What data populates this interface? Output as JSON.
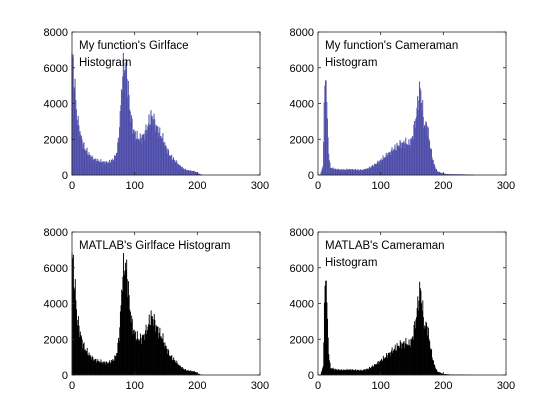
{
  "chart_data": [
    {
      "type": "bar",
      "variant": "outline",
      "title_lines": [
        "My function's Girlface",
        "Histogram"
      ],
      "xlim": [
        0,
        300
      ],
      "ylim": [
        0,
        8000
      ],
      "xticks": [
        0,
        100,
        200,
        300
      ],
      "yticks": [
        0,
        2000,
        4000,
        6000,
        8000
      ],
      "grid": false,
      "color": "#4a4aa8",
      "series": [
        {
          "x": [
            0,
            4,
            8,
            12,
            16,
            20,
            24,
            28,
            32,
            36,
            40,
            44,
            48,
            52,
            56,
            60,
            64,
            68,
            72,
            76,
            80,
            84,
            88,
            92,
            96,
            100,
            104,
            108,
            112,
            116,
            120,
            124,
            128,
            132,
            136,
            140,
            144,
            148,
            152,
            156,
            160,
            164,
            168,
            172,
            176,
            180,
            184,
            188,
            192,
            196,
            200,
            204,
            208
          ],
          "values": [
            6800,
            5200,
            3200,
            2500,
            1900,
            1500,
            1300,
            1100,
            950,
            850,
            800,
            760,
            720,
            700,
            680,
            720,
            800,
            950,
            1300,
            2600,
            5300,
            6300,
            5600,
            3800,
            2800,
            2300,
            2100,
            2000,
            2100,
            2300,
            2600,
            3100,
            3300,
            2900,
            2600,
            2300,
            2100,
            1700,
            1400,
            1100,
            950,
            800,
            650,
            500,
            400,
            300,
            250,
            230,
            210,
            190,
            100,
            40,
            0
          ]
        }
      ]
    },
    {
      "type": "bar",
      "variant": "outline",
      "title_lines": [
        "My function's Cameraman",
        "Histogram"
      ],
      "xlim": [
        0,
        300
      ],
      "ylim": [
        0,
        8000
      ],
      "xticks": [
        0,
        100,
        200,
        300
      ],
      "yticks": [
        0,
        2000,
        4000,
        6000,
        8000
      ],
      "grid": false,
      "color": "#4a4aa8",
      "series": [
        {
          "x": [
            4,
            8,
            10,
            12,
            14,
            16,
            18,
            20,
            24,
            30,
            40,
            50,
            60,
            70,
            80,
            90,
            100,
            110,
            120,
            130,
            140,
            145,
            150,
            155,
            158,
            160,
            163,
            165,
            168,
            170,
            173,
            175,
            180,
            185,
            190,
            200,
            210,
            220,
            230,
            240,
            250
          ],
          "values": [
            0,
            500,
            3500,
            6200,
            4000,
            2000,
            800,
            400,
            350,
            300,
            280,
            300,
            280,
            260,
            350,
            550,
            800,
            1100,
            1400,
            1700,
            1800,
            1700,
            2000,
            2900,
            3600,
            4200,
            4900,
            4300,
            3200,
            2700,
            2800,
            2600,
            1400,
            600,
            200,
            60,
            30,
            25,
            20,
            15,
            0
          ]
        }
      ]
    },
    {
      "type": "bar",
      "variant": "filled",
      "title_lines": [
        "MATLAB's Girlface Histogram"
      ],
      "xlim": [
        0,
        300
      ],
      "ylim": [
        0,
        8000
      ],
      "xticks": [
        0,
        100,
        200,
        300
      ],
      "yticks": [
        0,
        2000,
        4000,
        6000,
        8000
      ],
      "grid": false,
      "color": "#000000",
      "series": [
        {
          "x": [
            0,
            4,
            8,
            12,
            16,
            20,
            24,
            28,
            32,
            36,
            40,
            44,
            48,
            52,
            56,
            60,
            64,
            68,
            72,
            76,
            80,
            84,
            88,
            92,
            96,
            100,
            104,
            108,
            112,
            116,
            120,
            124,
            128,
            132,
            136,
            140,
            144,
            148,
            152,
            156,
            160,
            164,
            168,
            172,
            176,
            180,
            184,
            188,
            192,
            196,
            200,
            204,
            208
          ],
          "values": [
            6800,
            5200,
            3200,
            2500,
            1900,
            1500,
            1300,
            1100,
            950,
            850,
            800,
            760,
            720,
            700,
            680,
            720,
            800,
            950,
            1300,
            2600,
            5300,
            6300,
            5600,
            3800,
            2800,
            2300,
            2100,
            2000,
            2100,
            2300,
            2600,
            3100,
            3300,
            2900,
            2600,
            2300,
            2100,
            1700,
            1400,
            1100,
            950,
            800,
            650,
            500,
            400,
            300,
            250,
            230,
            210,
            190,
            100,
            40,
            0
          ]
        }
      ]
    },
    {
      "type": "bar",
      "variant": "filled",
      "title_lines": [
        "MATLAB's Cameraman",
        "Histogram"
      ],
      "xlim": [
        0,
        300
      ],
      "ylim": [
        0,
        8000
      ],
      "xticks": [
        0,
        100,
        200,
        300
      ],
      "yticks": [
        0,
        2000,
        4000,
        6000,
        8000
      ],
      "grid": false,
      "color": "#000000",
      "series": [
        {
          "x": [
            4,
            8,
            10,
            12,
            14,
            16,
            18,
            20,
            24,
            30,
            40,
            50,
            60,
            70,
            80,
            90,
            100,
            110,
            120,
            130,
            140,
            145,
            150,
            155,
            158,
            160,
            163,
            165,
            168,
            170,
            173,
            175,
            180,
            185,
            190,
            200,
            210,
            220,
            230,
            240,
            250
          ],
          "values": [
            0,
            500,
            3500,
            6200,
            4000,
            2000,
            800,
            400,
            350,
            300,
            280,
            300,
            280,
            260,
            350,
            550,
            800,
            1100,
            1400,
            1700,
            1800,
            1700,
            2000,
            2900,
            3600,
            4200,
            4900,
            4300,
            3200,
            2700,
            2800,
            2600,
            1400,
            600,
            200,
            60,
            30,
            25,
            20,
            15,
            0
          ]
        }
      ]
    }
  ]
}
